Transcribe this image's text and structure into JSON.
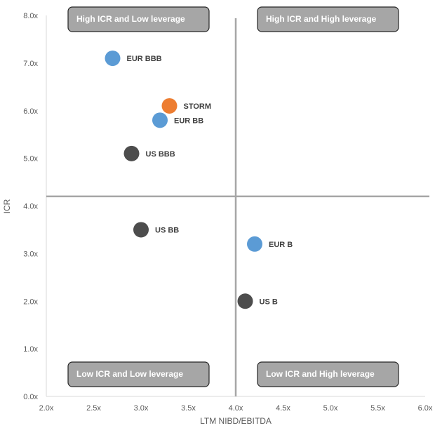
{
  "chart_data": {
    "type": "scatter",
    "xlabel": "LTM NIBD/EBITDA",
    "ylabel": "ICR",
    "xlim": [
      2.0,
      6.0
    ],
    "ylim": [
      0.0,
      8.0
    ],
    "x_ticks": [
      "2.0x",
      "2.5x",
      "3.0x",
      "3.5x",
      "4.0x",
      "4.5x",
      "5.0x",
      "5.5x",
      "6.0x"
    ],
    "y_ticks": [
      "0.0x",
      "1.0x",
      "2.0x",
      "3.0x",
      "4.0x",
      "5.0x",
      "6.0x",
      "7.0x",
      "8.0x"
    ],
    "grid": false,
    "divider_lines": {
      "x": 4.0,
      "y": 4.2
    },
    "points": [
      {
        "label": "EUR BBB",
        "x": 2.7,
        "y": 7.1,
        "color": "#5b9bd5"
      },
      {
        "label": "STORM",
        "x": 3.3,
        "y": 6.1,
        "color": "#ed7d31"
      },
      {
        "label": "EUR BB",
        "x": 3.2,
        "y": 5.8,
        "color": "#5b9bd5"
      },
      {
        "label": "US BBB",
        "x": 2.9,
        "y": 5.1,
        "color": "#4d4d4d"
      },
      {
        "label": "US BB",
        "x": 3.0,
        "y": 3.5,
        "color": "#4d4d4d"
      },
      {
        "label": "EUR B",
        "x": 4.2,
        "y": 3.2,
        "color": "#5b9bd5"
      },
      {
        "label": "US B",
        "x": 4.1,
        "y": 2.0,
        "color": "#4d4d4d"
      }
    ],
    "quadrant_labels": [
      {
        "text": "High ICR and Low leverage",
        "position": "top-left"
      },
      {
        "text": "High ICR and High leverage",
        "position": "top-right"
      },
      {
        "text": "Low ICR and Low leverage",
        "position": "bottom-left"
      },
      {
        "text": "Low ICR and High leverage",
        "position": "bottom-right"
      }
    ]
  }
}
